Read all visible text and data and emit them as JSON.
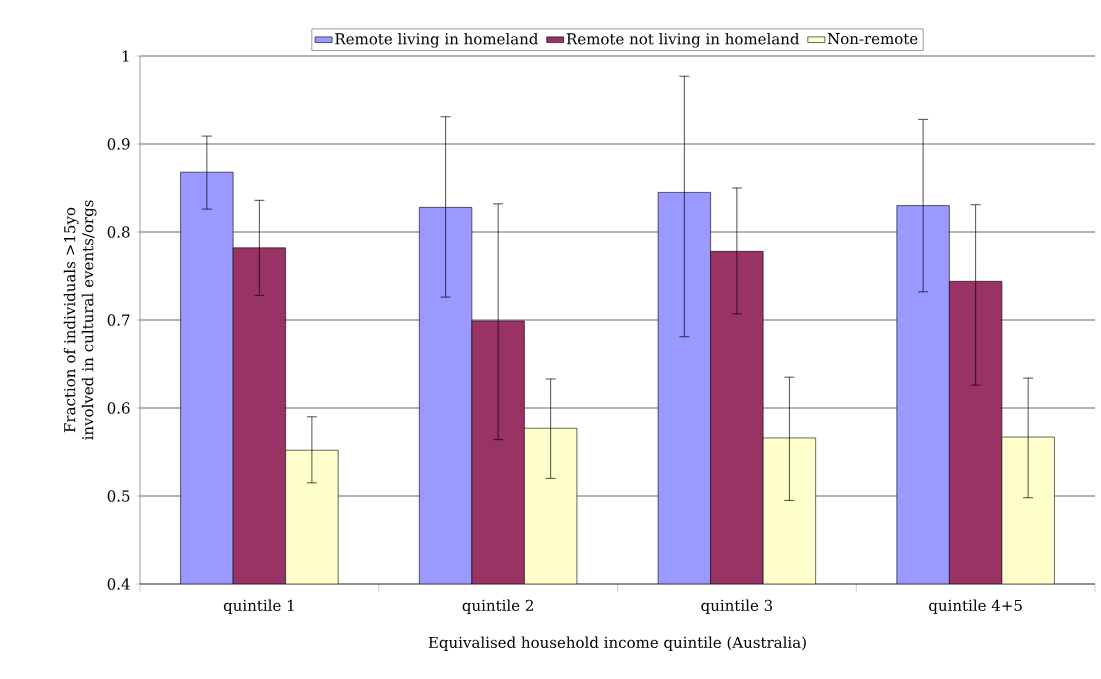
{
  "chart_data": {
    "type": "bar",
    "xlabel": "Equivalised household income quintile (Australia)",
    "ylabel": "Fraction of individuals >15yo involved in cultural events/orgs",
    "categories": [
      "quintile 1",
      "quintile 2",
      "quintile 3",
      "quintile 4+5"
    ],
    "series": [
      {
        "name": "Remote living in homeland",
        "color": "#9999ff",
        "values": [
          0.868,
          0.828,
          0.845,
          0.83
        ],
        "errors": [
          [
            0.826,
            0.909
          ],
          [
            0.726,
            0.931
          ],
          [
            0.681,
            0.977
          ],
          [
            0.732,
            0.928
          ]
        ]
      },
      {
        "name": "Remote not living in homeland",
        "color": "#993366",
        "values": [
          0.782,
          0.699,
          0.778,
          0.744
        ],
        "errors": [
          [
            0.728,
            0.836
          ],
          [
            0.564,
            0.832
          ],
          [
            0.707,
            0.85
          ],
          [
            0.626,
            0.831
          ]
        ]
      },
      {
        "name": "Non-remote",
        "color": "#ffffcc",
        "values": [
          0.552,
          0.577,
          0.566,
          0.567
        ],
        "errors": [
          [
            0.515,
            0.59
          ],
          [
            0.52,
            0.633
          ],
          [
            0.495,
            0.635
          ],
          [
            0.498,
            0.634
          ]
        ]
      }
    ],
    "ylim": [
      0.4,
      1
    ],
    "yticks": [
      0.4,
      0.5,
      0.6,
      0.7,
      0.8,
      0.9,
      1
    ],
    "grid": "y",
    "legend": "top"
  }
}
